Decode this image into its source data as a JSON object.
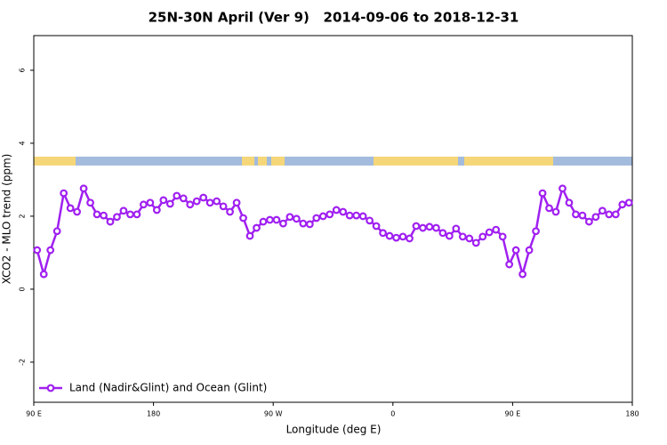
{
  "chart_data": {
    "type": "line",
    "title": "25N-30N April (Ver 9)   2014-09-06 to 2018-12-31",
    "x_label": "Longitude (deg E)",
    "y_label": "XCO2 - MLO trend (ppm)",
    "x": [
      92.5,
      97.5,
      102.5,
      107.5,
      112.5,
      117.5,
      122.5,
      127.5,
      132.5,
      137.5,
      142.5,
      147.5,
      152.5,
      157.5,
      162.5,
      167.5,
      172.5,
      177.5,
      182.5,
      187.5,
      192.5,
      197.5,
      202.5,
      207.5,
      212.5,
      217.5,
      222.5,
      227.5,
      232.5,
      237.5,
      242.5,
      247.5,
      252.5,
      257.5,
      262.5,
      267.5,
      272.5,
      277.5,
      282.5,
      287.5,
      292.5,
      297.5,
      302.5,
      307.5,
      312.5,
      317.5,
      322.5,
      327.5,
      332.5,
      337.5,
      342.5,
      347.5,
      352.5,
      357.5,
      362.5,
      367.5,
      372.5,
      377.5,
      382.5,
      387.5,
      392.5,
      397.5,
      402.5,
      407.5,
      412.5,
      417.5,
      422.5,
      427.5,
      432.5,
      437.5,
      442.5,
      447.5,
      452.5,
      457.5,
      462.5,
      467.5,
      472.5,
      477.5,
      482.5,
      487.5,
      492.5,
      497.5,
      502.5,
      507.5,
      512.5,
      517.5,
      522.5,
      527.5,
      532.5,
      537.5
    ],
    "series": [
      {
        "name": "Land (Nadir&Glint) and Ocean (Glint)",
        "color": "#a020f0",
        "values": [
          1.07,
          0.41,
          1.07,
          1.59,
          2.63,
          2.22,
          2.12,
          2.76,
          2.37,
          2.05,
          2.02,
          1.85,
          1.98,
          2.15,
          2.05,
          2.05,
          2.32,
          2.37,
          2.17,
          2.44,
          2.34,
          2.56,
          2.49,
          2.32,
          2.41,
          2.51,
          2.37,
          2.41,
          2.27,
          2.12,
          2.37,
          1.95,
          1.46,
          1.68,
          1.85,
          1.9,
          1.9,
          1.8,
          1.98,
          1.93,
          1.8,
          1.78,
          1.95,
          2.0,
          2.05,
          2.17,
          2.12,
          2.02,
          2.02,
          2.0,
          1.88,
          1.73,
          1.54,
          1.46,
          1.41,
          1.44,
          1.39,
          1.73,
          1.68,
          1.71,
          1.68,
          1.54,
          1.46,
          1.66,
          1.44,
          1.39,
          1.27,
          1.44,
          1.56,
          1.63,
          1.44,
          0.68,
          1.07,
          0.41,
          1.07,
          1.59,
          2.63,
          2.22,
          2.12,
          2.76,
          2.37,
          2.05,
          2.02,
          1.85,
          1.98,
          2.15,
          2.05,
          2.05,
          2.32,
          2.37
        ]
      }
    ],
    "xlim": [
      90,
      540
    ],
    "xticks": [
      {
        "value": 90,
        "label": "90 E"
      },
      180,
      {
        "value": 270,
        "label": "90 W"
      },
      {
        "value": 360,
        "label": "0"
      },
      {
        "value": 450,
        "label": "90 E"
      },
      {
        "value": 540,
        "label": "180"
      }
    ],
    "ylim": [
      -3.1,
      6.95
    ],
    "yticks": [
      -2,
      0,
      2,
      4,
      6
    ],
    "legend": "bottomleft"
  }
}
